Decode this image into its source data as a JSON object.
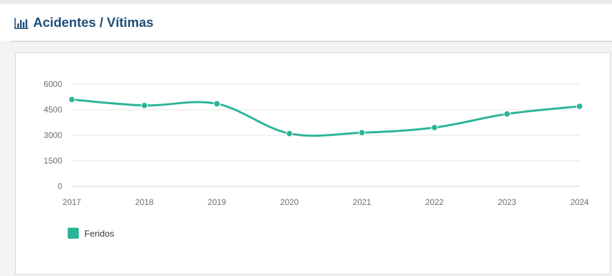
{
  "header": {
    "title": "Acidentes / Vítimas",
    "icon": "bar-chart-icon"
  },
  "chart_data": {
    "type": "line",
    "x": [
      "2017",
      "2018",
      "2019",
      "2020",
      "2021",
      "2022",
      "2023",
      "2024"
    ],
    "series": [
      {
        "name": "Feridos",
        "values": [
          5100,
          4750,
          4850,
          3100,
          3150,
          3450,
          4250,
          4700
        ],
        "color": "#2bb598"
      }
    ],
    "yticks": [
      0,
      1500,
      3000,
      4500,
      6000
    ],
    "ylim": [
      0,
      6000
    ],
    "grid": true,
    "legend": "bottom-left",
    "smooth": true
  }
}
